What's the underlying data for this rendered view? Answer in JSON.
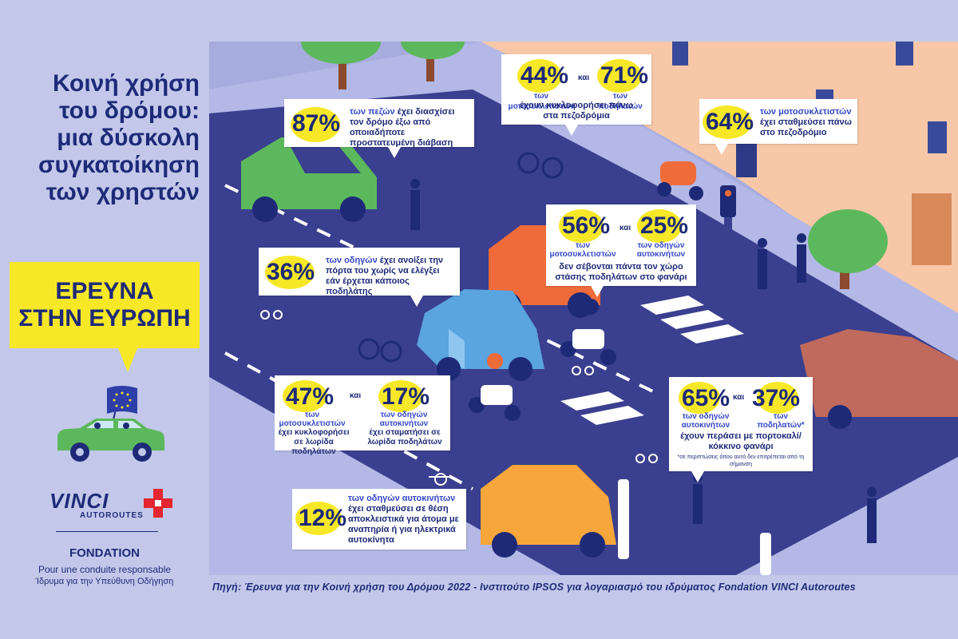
{
  "title": {
    "line1": "Κοινή χρήση",
    "line2": "του δρόμου:",
    "line3": "μια δύσκολη",
    "line4": "συγκατοίκηση",
    "line5": "των χρηστών"
  },
  "banner": {
    "line1": "ΕΡΕΥΝΑ",
    "line2": "ΣΤΗΝ ΕΥΡΩΠΗ"
  },
  "logo": {
    "brand": "VINCI",
    "sub": "AUTOROUTES",
    "fondation": "FONDATION",
    "tagline_fr": "Pour une conduite responsable",
    "tagline_gr": "Ίδρυμα για την Υπεύθυνη Οδήγηση"
  },
  "source": "Πηγή: Έρευνα για την Κοινή χρήση του Δρόμου 2022 - Ινστιτούτο IPSOS για λογαριασμό του ιδρύματος Fondation VINCI Autoroutes",
  "kai": "και",
  "stats": {
    "s87": {
      "pct": "87%",
      "hl": "των πεζών",
      "text": " έχει διασχίσει τον δρόμο έξω από οποιαδήποτε προστατευμένη διάβαση"
    },
    "s44_71": {
      "pct_a": "44%",
      "label_a": "των μοτοσυκλετιστών",
      "pct_b": "71%",
      "label_b": "των ποδηλατών",
      "text": "έχουν κυκλοφορήσει πάνω στα πεζοδρόμια"
    },
    "s64": {
      "pct": "64%",
      "hl": "των μοτοσυκλετιστών",
      "text": "έχει σταθμεύσει πάνω στο πεζοδρόμιο"
    },
    "s36": {
      "pct": "36%",
      "hl": "των οδηγών",
      "text": " έχει ανοίξει την πόρτα του χωρίς να ελέγξει εάν έρχεται κάποιος ποδηλάτης"
    },
    "s56_25": {
      "pct_a": "56%",
      "label_a": "των μοτοσυκλετιστών",
      "pct_b": "25%",
      "label_b": "των οδηγών αυτοκινήτων",
      "text": "δεν σέβονται πάντα τον χώρο στάσης ποδηλάτων στο φανάρι"
    },
    "s47_17": {
      "pct_a": "47%",
      "label_a": "των μοτοσυκλετιστών",
      "text_a": "έχει κυκλοφορήσει σε λωρίδα ποδηλάτων",
      "pct_b": "17%",
      "label_b": "των οδηγών αυτοκινήτων",
      "text_b": "έχει σταματήσει σε λωρίδα ποδηλάτων"
    },
    "s65_37": {
      "pct_a": "65%",
      "label_a": "των οδηγών αυτοκινήτων",
      "pct_b": "37%",
      "label_b": "των ποδηλατών*",
      "text": "έχουν περάσει με πορτοκαλί/κόκκινο φανάρι",
      "note": "*σε περιπτώσεις όπου αυτό δεν επιτρέπεται από τη σήμανση"
    },
    "s12": {
      "pct": "12%",
      "hl": "των οδηγών αυτοκινήτων",
      "text": "έχει σταθμεύσει σε θέση αποκλειστικά για άτομα με αναπηρία ή για ηλεκτρικά αυτοκίνητα"
    }
  },
  "colors": {
    "navy": "#1e2a78",
    "yellow": "#f6e827",
    "background": "#c3c8ea",
    "road": "#3a3f8f",
    "sidewalk": "#a7acde",
    "building": "#f7c7a8"
  },
  "icons": [
    "eu-flag-icon",
    "green-car-icon",
    "vinci-cross-icon",
    "bicycle-marking-icon",
    "wheelchair-marking-icon",
    "traffic-light-icon",
    "ev-charger-icon",
    "tree-icon"
  ]
}
